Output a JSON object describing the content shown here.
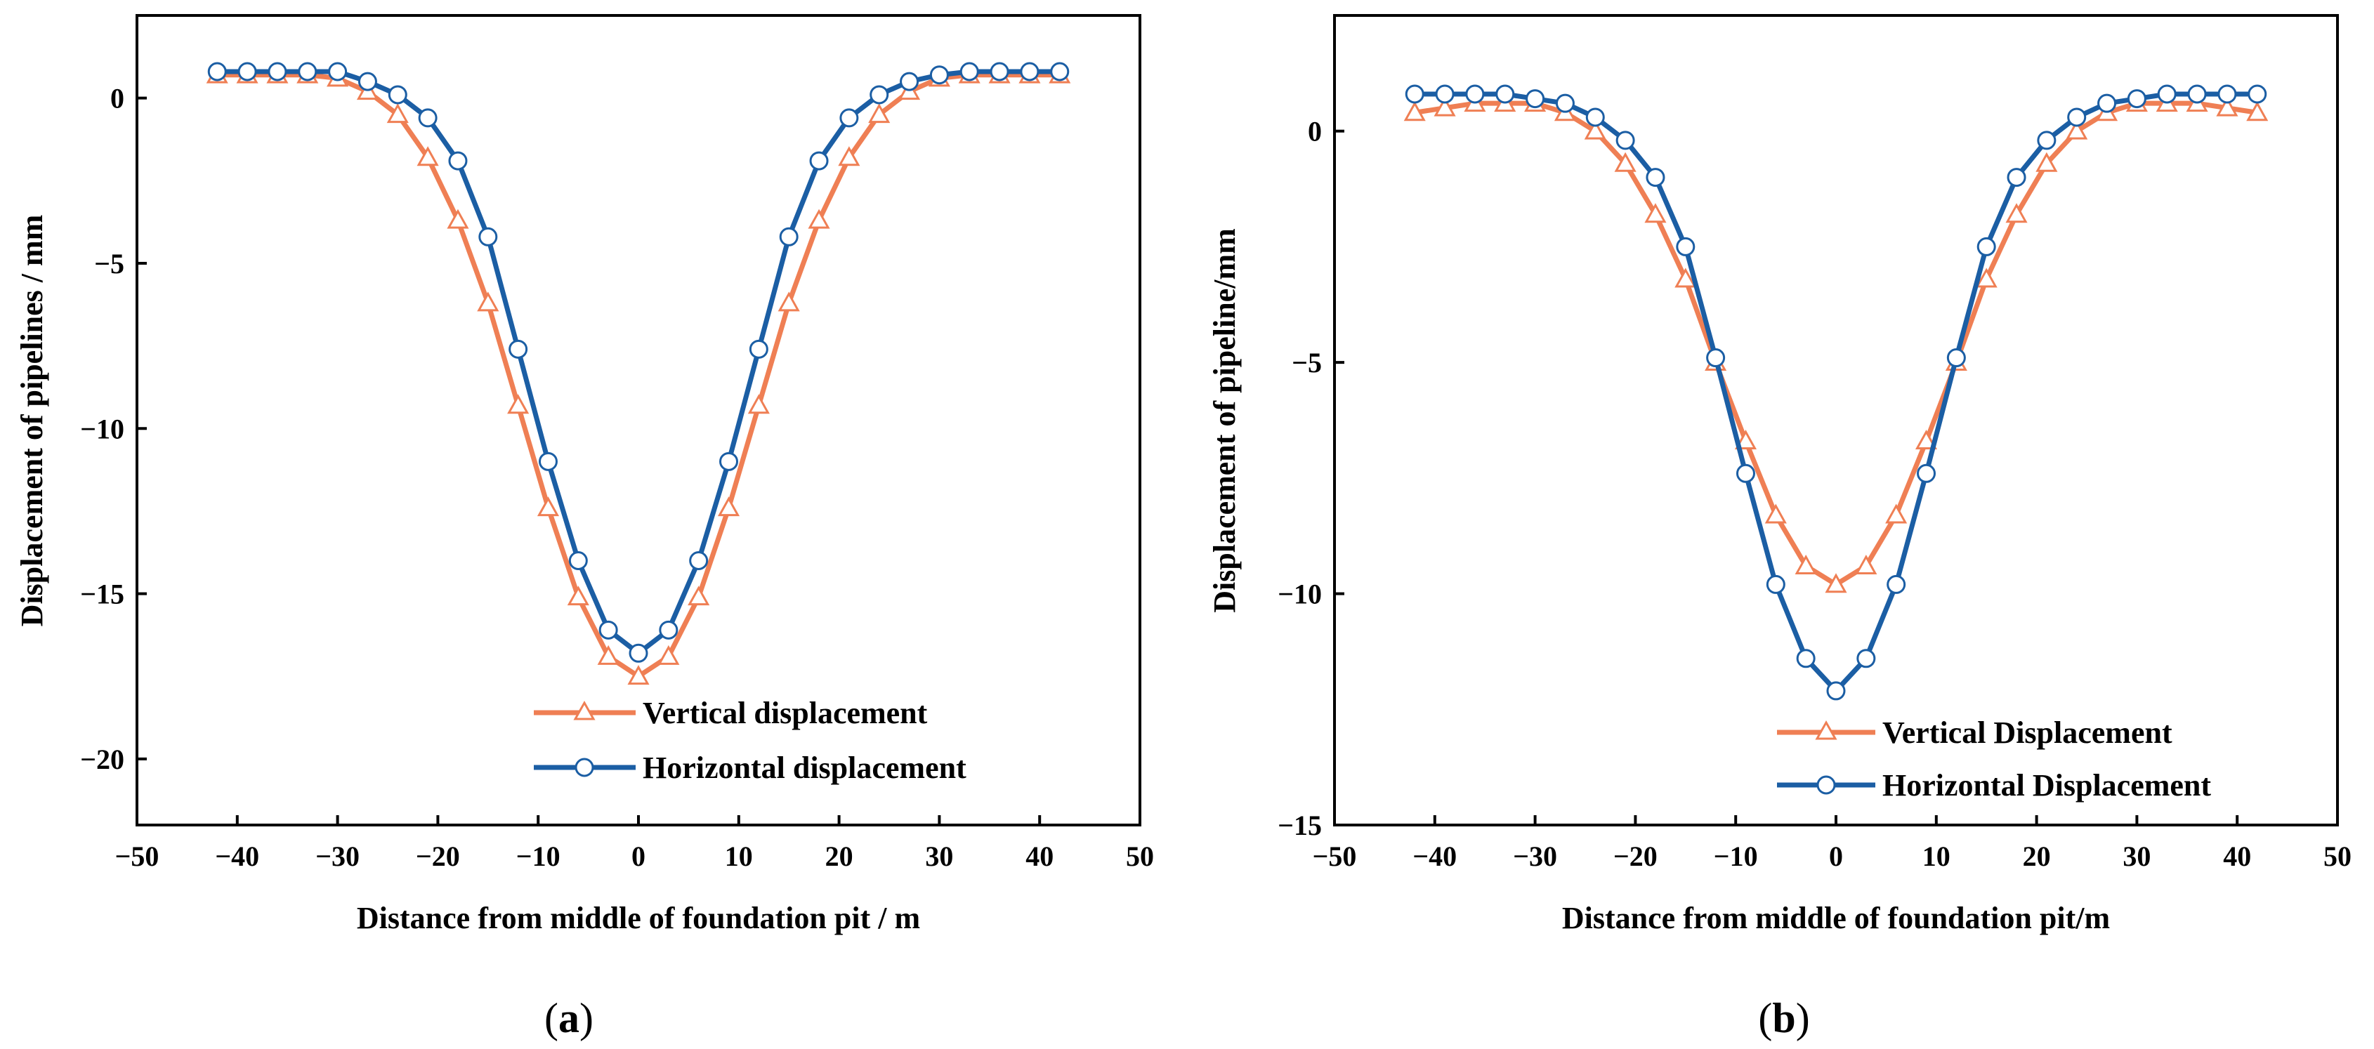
{
  "colors": {
    "vertical": "#ef7f54",
    "horizontal": "#1b5ea4",
    "axis": "#000000"
  },
  "chart_data": [
    {
      "type": "line",
      "caption_letter": "a",
      "xlabel": "Distance from middle of foundation pit / m",
      "ylabel": "Displacement of pipelines / mm",
      "xlim": [
        -50,
        50
      ],
      "ylim": [
        -22,
        2.5
      ],
      "xticks": [
        -50,
        -40,
        -30,
        -20,
        -10,
        0,
        10,
        20,
        30,
        40,
        50
      ],
      "yticks": [
        0,
        -5,
        -10,
        -15,
        -20
      ],
      "x": [
        -42,
        -39,
        -36,
        -33,
        -30,
        -27,
        -24,
        -21,
        -18,
        -15,
        -12,
        -9,
        -6,
        -3,
        0,
        3,
        6,
        9,
        12,
        15,
        18,
        21,
        24,
        27,
        30,
        33,
        36,
        39,
        42
      ],
      "series": [
        {
          "name": "Vertical displacement",
          "marker": "triangle",
          "color_key": "vertical",
          "values": [
            0.7,
            0.7,
            0.7,
            0.7,
            0.6,
            0.2,
            -0.5,
            -1.8,
            -3.7,
            -6.2,
            -9.3,
            -12.4,
            -15.1,
            -16.9,
            -17.5,
            -16.9,
            -15.1,
            -12.4,
            -9.3,
            -6.2,
            -3.7,
            -1.8,
            -0.5,
            0.2,
            0.6,
            0.7,
            0.7,
            0.7,
            0.7
          ]
        },
        {
          "name": "Horizontal displacement",
          "marker": "circle",
          "color_key": "horizontal",
          "values": [
            0.8,
            0.8,
            0.8,
            0.8,
            0.8,
            0.5,
            0.1,
            -0.6,
            -1.9,
            -4.2,
            -7.6,
            -11.0,
            -14.0,
            -16.1,
            -16.8,
            -16.1,
            -14.0,
            -11.0,
            -7.6,
            -4.2,
            -1.9,
            -0.6,
            0.1,
            0.5,
            0.7,
            0.8,
            0.8,
            0.8,
            0.8
          ]
        }
      ]
    },
    {
      "type": "line",
      "caption_letter": "b",
      "xlabel": "Distance from middle of  foundation pit/m",
      "ylabel": "Displacement of pipeline/mm",
      "xlim": [
        -50,
        50
      ],
      "ylim": [
        -15,
        2.5
      ],
      "xticks": [
        -50,
        -40,
        -30,
        -20,
        -10,
        0,
        10,
        20,
        30,
        40,
        50
      ],
      "yticks": [
        0,
        -5,
        -10,
        -15
      ],
      "x": [
        -42,
        -39,
        -36,
        -33,
        -30,
        -27,
        -24,
        -21,
        -18,
        -15,
        -12,
        -9,
        -6,
        -3,
        0,
        3,
        6,
        9,
        12,
        15,
        18,
        21,
        24,
        27,
        30,
        33,
        36,
        39,
        42
      ],
      "series": [
        {
          "name": "Vertical Displacement",
          "marker": "triangle",
          "color_key": "vertical",
          "values": [
            0.4,
            0.5,
            0.6,
            0.6,
            0.6,
            0.4,
            0.0,
            -0.7,
            -1.8,
            -3.2,
            -5.0,
            -6.7,
            -8.3,
            -9.4,
            -9.8,
            -9.4,
            -8.3,
            -6.7,
            -5.0,
            -3.2,
            -1.8,
            -0.7,
            0.0,
            0.4,
            0.6,
            0.6,
            0.6,
            0.5,
            0.4
          ]
        },
        {
          "name": "Horizontal Displacement",
          "marker": "circle",
          "color_key": "horizontal",
          "values": [
            0.8,
            0.8,
            0.8,
            0.8,
            0.7,
            0.6,
            0.3,
            -0.2,
            -1.0,
            -2.5,
            -4.9,
            -7.4,
            -9.8,
            -11.4,
            -12.1,
            -11.4,
            -9.8,
            -7.4,
            -4.9,
            -2.5,
            -1.0,
            -0.2,
            0.3,
            0.6,
            0.7,
            0.8,
            0.8,
            0.8,
            0.8
          ]
        }
      ]
    }
  ]
}
